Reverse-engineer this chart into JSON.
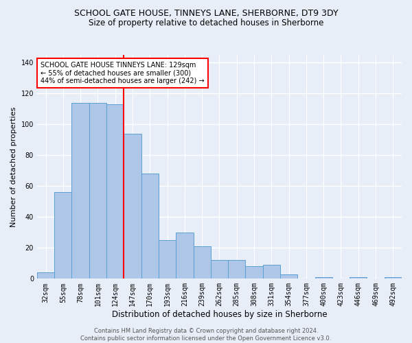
{
  "title": "SCHOOL GATE HOUSE, TINNEYS LANE, SHERBORNE, DT9 3DY",
  "subtitle": "Size of property relative to detached houses in Sherborne",
  "xlabel": "Distribution of detached houses by size in Sherborne",
  "ylabel": "Number of detached properties",
  "categories": [
    "32sqm",
    "55sqm",
    "78sqm",
    "101sqm",
    "124sqm",
    "147sqm",
    "170sqm",
    "193sqm",
    "216sqm",
    "239sqm",
    "262sqm",
    "285sqm",
    "308sqm",
    "331sqm",
    "354sqm",
    "377sqm",
    "400sqm",
    "423sqm",
    "446sqm",
    "469sqm",
    "492sqm"
  ],
  "values": [
    4,
    56,
    114,
    114,
    113,
    94,
    68,
    25,
    30,
    21,
    12,
    12,
    8,
    9,
    3,
    0,
    1,
    0,
    1,
    0,
    1
  ],
  "bar_color": "#aec6e8",
  "bar_edge_color": "#5a9fd4",
  "background_color": "#e8eef8",
  "grid_color": "#ffffff",
  "vline_x": 4.5,
  "vline_color": "red",
  "annotation_title": "SCHOOL GATE HOUSE TINNEYS LANE: 129sqm",
  "annotation_line1": "← 55% of detached houses are smaller (300)",
  "annotation_line2": "44% of semi-detached houses are larger (242) →",
  "annotation_box_color": "#ffffff",
  "annotation_border_color": "red",
  "footer_line1": "Contains HM Land Registry data © Crown copyright and database right 2024.",
  "footer_line2": "Contains public sector information licensed under the Open Government Licence v3.0.",
  "ylim": [
    0,
    145
  ],
  "yticks": [
    0,
    20,
    40,
    60,
    80,
    100,
    120,
    140
  ],
  "title_fontsize": 9,
  "subtitle_fontsize": 8.5,
  "ylabel_fontsize": 8,
  "xlabel_fontsize": 8.5,
  "tick_fontsize": 7,
  "annotation_fontsize": 7,
  "footer_fontsize": 6
}
